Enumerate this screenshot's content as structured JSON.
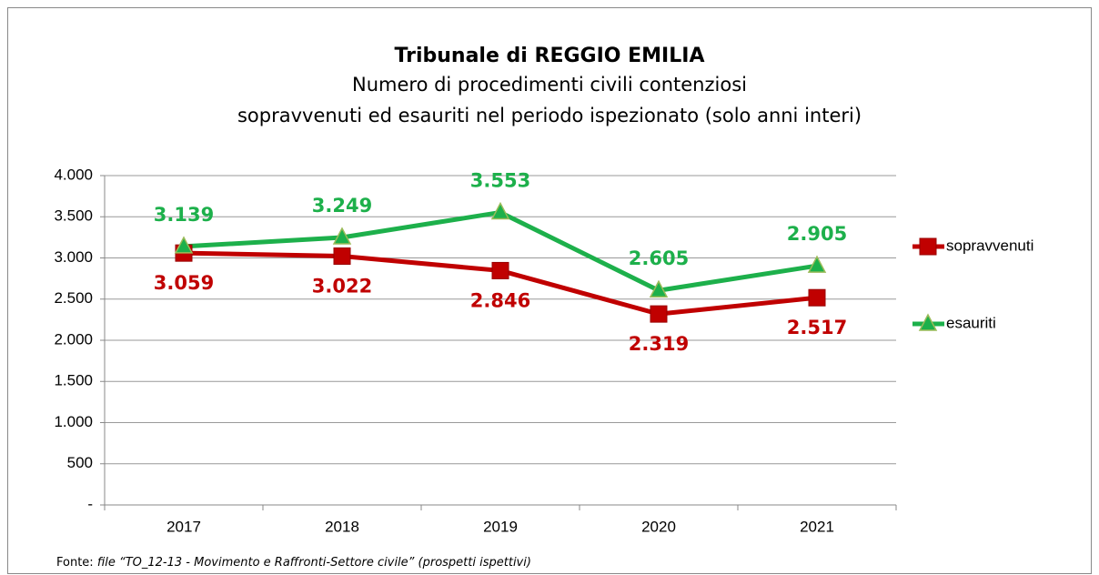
{
  "chart_data": {
    "type": "line",
    "title": "Tribunale di REGGIO EMILIA",
    "subtitle": [
      "Numero di procedimenti civili contenziosi",
      "sopravvenuti ed esauriti nel periodo ispezionato (solo anni interi)"
    ],
    "categories": [
      "2017",
      "2018",
      "2019",
      "2020",
      "2021"
    ],
    "series": [
      {
        "name": "sopravvenuti",
        "color": "#c00000",
        "marker": "square",
        "values": [
          3059,
          3022,
          2846,
          2319,
          2517
        ],
        "value_labels": [
          "3.059",
          "3.022",
          "2.846",
          "2.319",
          "2.517"
        ]
      },
      {
        "name": "esauriti",
        "color": "#1db04b",
        "marker": "triangle",
        "values": [
          3139,
          3249,
          3553,
          2605,
          2905
        ],
        "value_labels": [
          "3.139",
          "3.249",
          "3.553",
          "2.605",
          "2.905"
        ]
      }
    ],
    "ylim": [
      0,
      4000
    ],
    "yticks": [
      {
        "value": 0,
        "label": "-"
      },
      500,
      {
        "value": 1000,
        "label": "1.000"
      },
      {
        "value": 1500,
        "label": "1.500"
      },
      {
        "value": 2000,
        "label": "2.000"
      },
      {
        "value": 2500,
        "label": "2.500"
      },
      {
        "value": 3000,
        "label": "3.000"
      },
      {
        "value": 3500,
        "label": "3.500"
      },
      {
        "value": 4000,
        "label": "4.000"
      }
    ],
    "grid": true,
    "legend": "right",
    "source_label": "Fonte:",
    "source": "file “TO_12-13 - Movimento e Raffronti-Settore civile” (prospetti ispettivi)"
  }
}
